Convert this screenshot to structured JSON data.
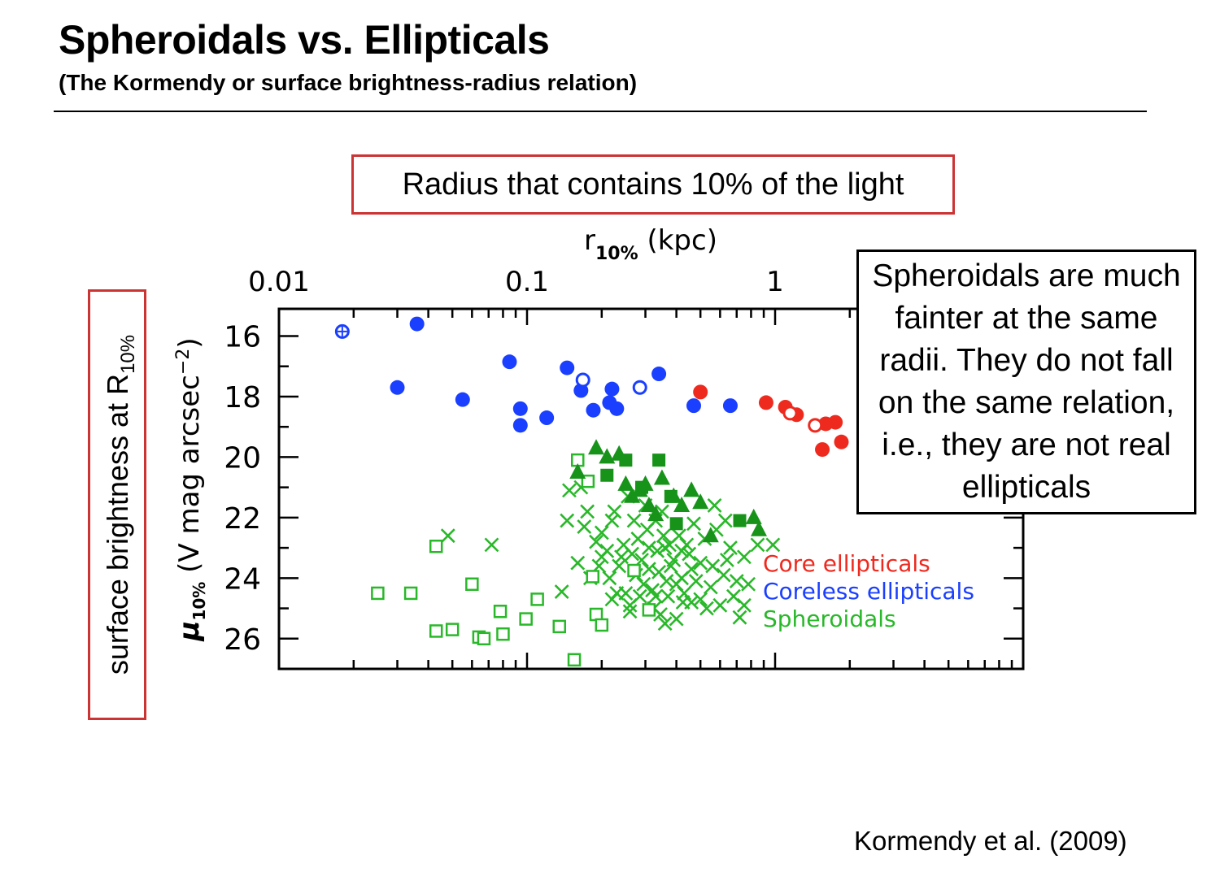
{
  "slide": {
    "title": "Spheroidals vs. Ellipticals",
    "subtitle": "(The Kormendy or surface brightness-radius relation)",
    "x_callout": "Radius that contains 10% of the light",
    "y_callout": "surface brightness at R",
    "y_callout_sub": "10%",
    "note": "Spheroidals are much fainter at the same radii. They do not fall on the same relation, i.e., they are not real ellipticals",
    "citation": "Kormendy et al. (2009)"
  },
  "chart_data": {
    "type": "scatter",
    "xlabel": "r",
    "xlabel_sub": "10%",
    "xlabel_unit": "(kpc)",
    "ylabel": "μ",
    "ylabel_sub": "10%",
    "ylabel_unit": "(V mag arcsec",
    "ylabel_exp": "−2",
    "ylabel_close": ")",
    "x_scale": "log",
    "xlim": [
      0.01,
      10
    ],
    "ylim": [
      27,
      15.1
    ],
    "x_ticklabels": [
      "0.01",
      "0.1",
      "1"
    ],
    "x_ticks": [
      0.01,
      0.1,
      1
    ],
    "y_ticks": [
      16,
      18,
      20,
      22,
      24,
      26
    ],
    "legend_position": "lower-right",
    "colors": {
      "core": "#ee2a1f",
      "coreless": "#1a3fff",
      "spheroidal": "#29b829",
      "spheroidal_dark": "#17931a"
    },
    "series": [
      {
        "name": "Core ellipticals",
        "color": "#ee2a1f",
        "marker": "filled-circle",
        "points": [
          [
            0.5,
            17.85
          ],
          [
            0.92,
            18.2
          ],
          [
            1.1,
            18.35
          ],
          [
            1.22,
            18.6
          ],
          [
            1.6,
            18.9
          ],
          [
            1.75,
            18.85
          ],
          [
            1.55,
            19.75
          ],
          [
            1.85,
            19.5
          ]
        ]
      },
      {
        "name": "Core ellipticals (open)",
        "color": "#ee2a1f",
        "marker": "open-circle",
        "points": [
          [
            1.15,
            18.55
          ],
          [
            1.45,
            18.95
          ]
        ]
      },
      {
        "name": "Coreless ellipticals",
        "color": "#1a3fff",
        "marker": "filled-circle",
        "points": [
          [
            0.036,
            15.6
          ],
          [
            0.03,
            17.7
          ],
          [
            0.055,
            18.1
          ],
          [
            0.085,
            16.85
          ],
          [
            0.094,
            18.4
          ],
          [
            0.094,
            18.95
          ],
          [
            0.12,
            18.7
          ],
          [
            0.145,
            17.05
          ],
          [
            0.165,
            17.8
          ],
          [
            0.185,
            18.45
          ],
          [
            0.215,
            18.2
          ],
          [
            0.22,
            17.75
          ],
          [
            0.23,
            18.4
          ],
          [
            0.34,
            17.25
          ],
          [
            0.47,
            18.3
          ],
          [
            0.66,
            18.3
          ]
        ]
      },
      {
        "name": "Coreless ellipticals (open)",
        "color": "#1a3fff",
        "marker": "open-circle",
        "points": [
          [
            0.018,
            15.85
          ],
          [
            0.168,
            17.45
          ],
          [
            0.285,
            17.7
          ]
        ]
      },
      {
        "name": "Spheroidals",
        "color": "#29b829",
        "marker": "cross",
        "points": [
          [
            0.048,
            22.6
          ],
          [
            0.072,
            22.9
          ],
          [
            0.145,
            22.1
          ],
          [
            0.148,
            21.1
          ],
          [
            0.165,
            21.0
          ],
          [
            0.138,
            24.45
          ],
          [
            0.17,
            22.3
          ],
          [
            0.19,
            22.8
          ],
          [
            0.2,
            23.3
          ],
          [
            0.215,
            24.0
          ],
          [
            0.22,
            22.1
          ],
          [
            0.235,
            23.6
          ],
          [
            0.25,
            24.5
          ],
          [
            0.265,
            23.2
          ],
          [
            0.28,
            22.7
          ],
          [
            0.295,
            24.2
          ],
          [
            0.31,
            23.0
          ],
          [
            0.325,
            25.0
          ],
          [
            0.34,
            23.8
          ],
          [
            0.355,
            22.6
          ],
          [
            0.37,
            24.6
          ],
          [
            0.39,
            23.4
          ],
          [
            0.4,
            25.35
          ],
          [
            0.42,
            24.0
          ],
          [
            0.44,
            22.9
          ],
          [
            0.46,
            24.8
          ],
          [
            0.5,
            23.5
          ],
          [
            0.55,
            24.3
          ],
          [
            0.58,
            22.4
          ],
          [
            0.62,
            23.9
          ],
          [
            0.68,
            24.6
          ],
          [
            0.72,
            25.3
          ],
          [
            0.75,
            23.3
          ],
          [
            0.78,
            24.2
          ],
          [
            0.85,
            22.9
          ],
          [
            0.98,
            22.9
          ],
          [
            0.18,
            24.0
          ],
          [
            0.21,
            23.1
          ],
          [
            0.225,
            21.8
          ],
          [
            0.245,
            22.9
          ],
          [
            0.26,
            24.9
          ],
          [
            0.275,
            23.9
          ],
          [
            0.29,
            23.4
          ],
          [
            0.305,
            22.4
          ],
          [
            0.32,
            24.4
          ],
          [
            0.335,
            23.1
          ],
          [
            0.35,
            21.8
          ],
          [
            0.365,
            24.1
          ],
          [
            0.38,
            23.6
          ],
          [
            0.41,
            22.6
          ],
          [
            0.43,
            24.5
          ],
          [
            0.45,
            23.2
          ],
          [
            0.48,
            24.1
          ],
          [
            0.52,
            22.7
          ],
          [
            0.56,
            23.6
          ],
          [
            0.6,
            24.9
          ],
          [
            0.64,
            23.4
          ],
          [
            0.7,
            24.1
          ],
          [
            0.195,
            23.6
          ],
          [
            0.23,
            24.5
          ],
          [
            0.27,
            22.1
          ],
          [
            0.31,
            23.7
          ],
          [
            0.33,
            24.6
          ],
          [
            0.36,
            23.0
          ],
          [
            0.4,
            24.2
          ],
          [
            0.46,
            23.7
          ],
          [
            0.53,
            25.0
          ],
          [
            0.63,
            22.1
          ],
          [
            0.2,
            22.5
          ],
          [
            0.24,
            23.3
          ],
          [
            0.285,
            24.6
          ],
          [
            0.3,
            21.6
          ],
          [
            0.345,
            25.2
          ],
          [
            0.42,
            23.1
          ],
          [
            0.5,
            24.7
          ],
          [
            0.57,
            21.6
          ],
          [
            0.66,
            23.0
          ],
          [
            0.16,
            23.5
          ],
          [
            0.175,
            21.8
          ],
          [
            0.255,
            21.3
          ],
          [
            0.33,
            22.1
          ],
          [
            0.375,
            22.9
          ],
          [
            0.425,
            24.8
          ],
          [
            0.47,
            22.2
          ],
          [
            0.75,
            24.9
          ],
          [
            0.22,
            24.7
          ],
          [
            0.26,
            25.1
          ],
          [
            0.36,
            25.5
          ]
        ]
      },
      {
        "name": "Spheroidals (filled)",
        "color": "#17931a",
        "marker": "filled-triangle",
        "points": [
          [
            0.16,
            20.5
          ],
          [
            0.19,
            19.7
          ],
          [
            0.21,
            20.0
          ],
          [
            0.235,
            19.9
          ],
          [
            0.25,
            20.9
          ],
          [
            0.265,
            21.3
          ],
          [
            0.285,
            21.1
          ],
          [
            0.3,
            20.9
          ],
          [
            0.31,
            21.6
          ],
          [
            0.33,
            21.9
          ],
          [
            0.35,
            20.7
          ],
          [
            0.39,
            21.3
          ],
          [
            0.42,
            21.6
          ],
          [
            0.46,
            21.1
          ],
          [
            0.55,
            22.6
          ],
          [
            0.5,
            21.5
          ],
          [
            0.86,
            22.4
          ],
          [
            0.82,
            22.0
          ]
        ]
      },
      {
        "name": "Spheroidals (filled squares)",
        "color": "#17931a",
        "marker": "filled-square",
        "points": [
          [
            0.21,
            20.6
          ],
          [
            0.25,
            20.1
          ],
          [
            0.29,
            21.0
          ],
          [
            0.34,
            20.1
          ],
          [
            0.38,
            21.3
          ],
          [
            0.72,
            22.1
          ],
          [
            0.4,
            22.2
          ]
        ]
      },
      {
        "name": "Spheroidals (open)",
        "color": "#29b829",
        "marker": "open-square",
        "points": [
          [
            0.025,
            24.5
          ],
          [
            0.043,
            22.95
          ],
          [
            0.034,
            24.5
          ],
          [
            0.043,
            25.75
          ],
          [
            0.05,
            25.7
          ],
          [
            0.06,
            24.2
          ],
          [
            0.064,
            25.95
          ],
          [
            0.067,
            26.0
          ],
          [
            0.078,
            25.1
          ],
          [
            0.08,
            25.85
          ],
          [
            0.099,
            25.35
          ],
          [
            0.11,
            24.7
          ],
          [
            0.135,
            25.6
          ],
          [
            0.155,
            26.7
          ],
          [
            0.16,
            20.1
          ],
          [
            0.176,
            20.8
          ],
          [
            0.184,
            23.95
          ],
          [
            0.19,
            25.2
          ],
          [
            0.2,
            25.55
          ],
          [
            0.27,
            23.75
          ],
          [
            0.31,
            25.05
          ]
        ]
      }
    ]
  }
}
